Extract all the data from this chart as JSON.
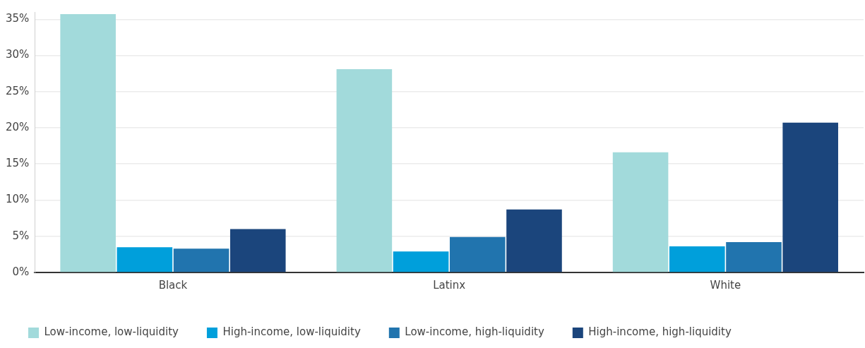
{
  "chart_data": {
    "type": "bar",
    "categories": [
      "Black",
      "Latinx",
      "White"
    ],
    "series": [
      {
        "name": "Low-income, low-liquidity",
        "color": "#a2dadb",
        "values": [
          35.7,
          28.1,
          16.6
        ]
      },
      {
        "name": "High-income, low-liquidity",
        "color": "#009fdb",
        "values": [
          3.5,
          2.9,
          3.6
        ]
      },
      {
        "name": "Low-income, high-liquidity",
        "color": "#2174ae",
        "values": [
          3.3,
          4.9,
          4.2
        ]
      },
      {
        "name": "High-income, high-liquidity",
        "color": "#1b457c",
        "values": [
          6.0,
          8.7,
          20.7
        ]
      }
    ],
    "ylim": [
      0,
      36
    ],
    "yticks": [
      {
        "value": 0,
        "label": "0%"
      },
      {
        "value": 5,
        "label": "5%"
      },
      {
        "value": 10,
        "label": "10%"
      },
      {
        "value": 15,
        "label": "15%"
      },
      {
        "value": 20,
        "label": "20%"
      },
      {
        "value": 25,
        "label": "25%"
      },
      {
        "value": 30,
        "label": "30%"
      },
      {
        "value": 35,
        "label": "35%"
      }
    ],
    "grid": "y",
    "legend": "bottom left"
  }
}
